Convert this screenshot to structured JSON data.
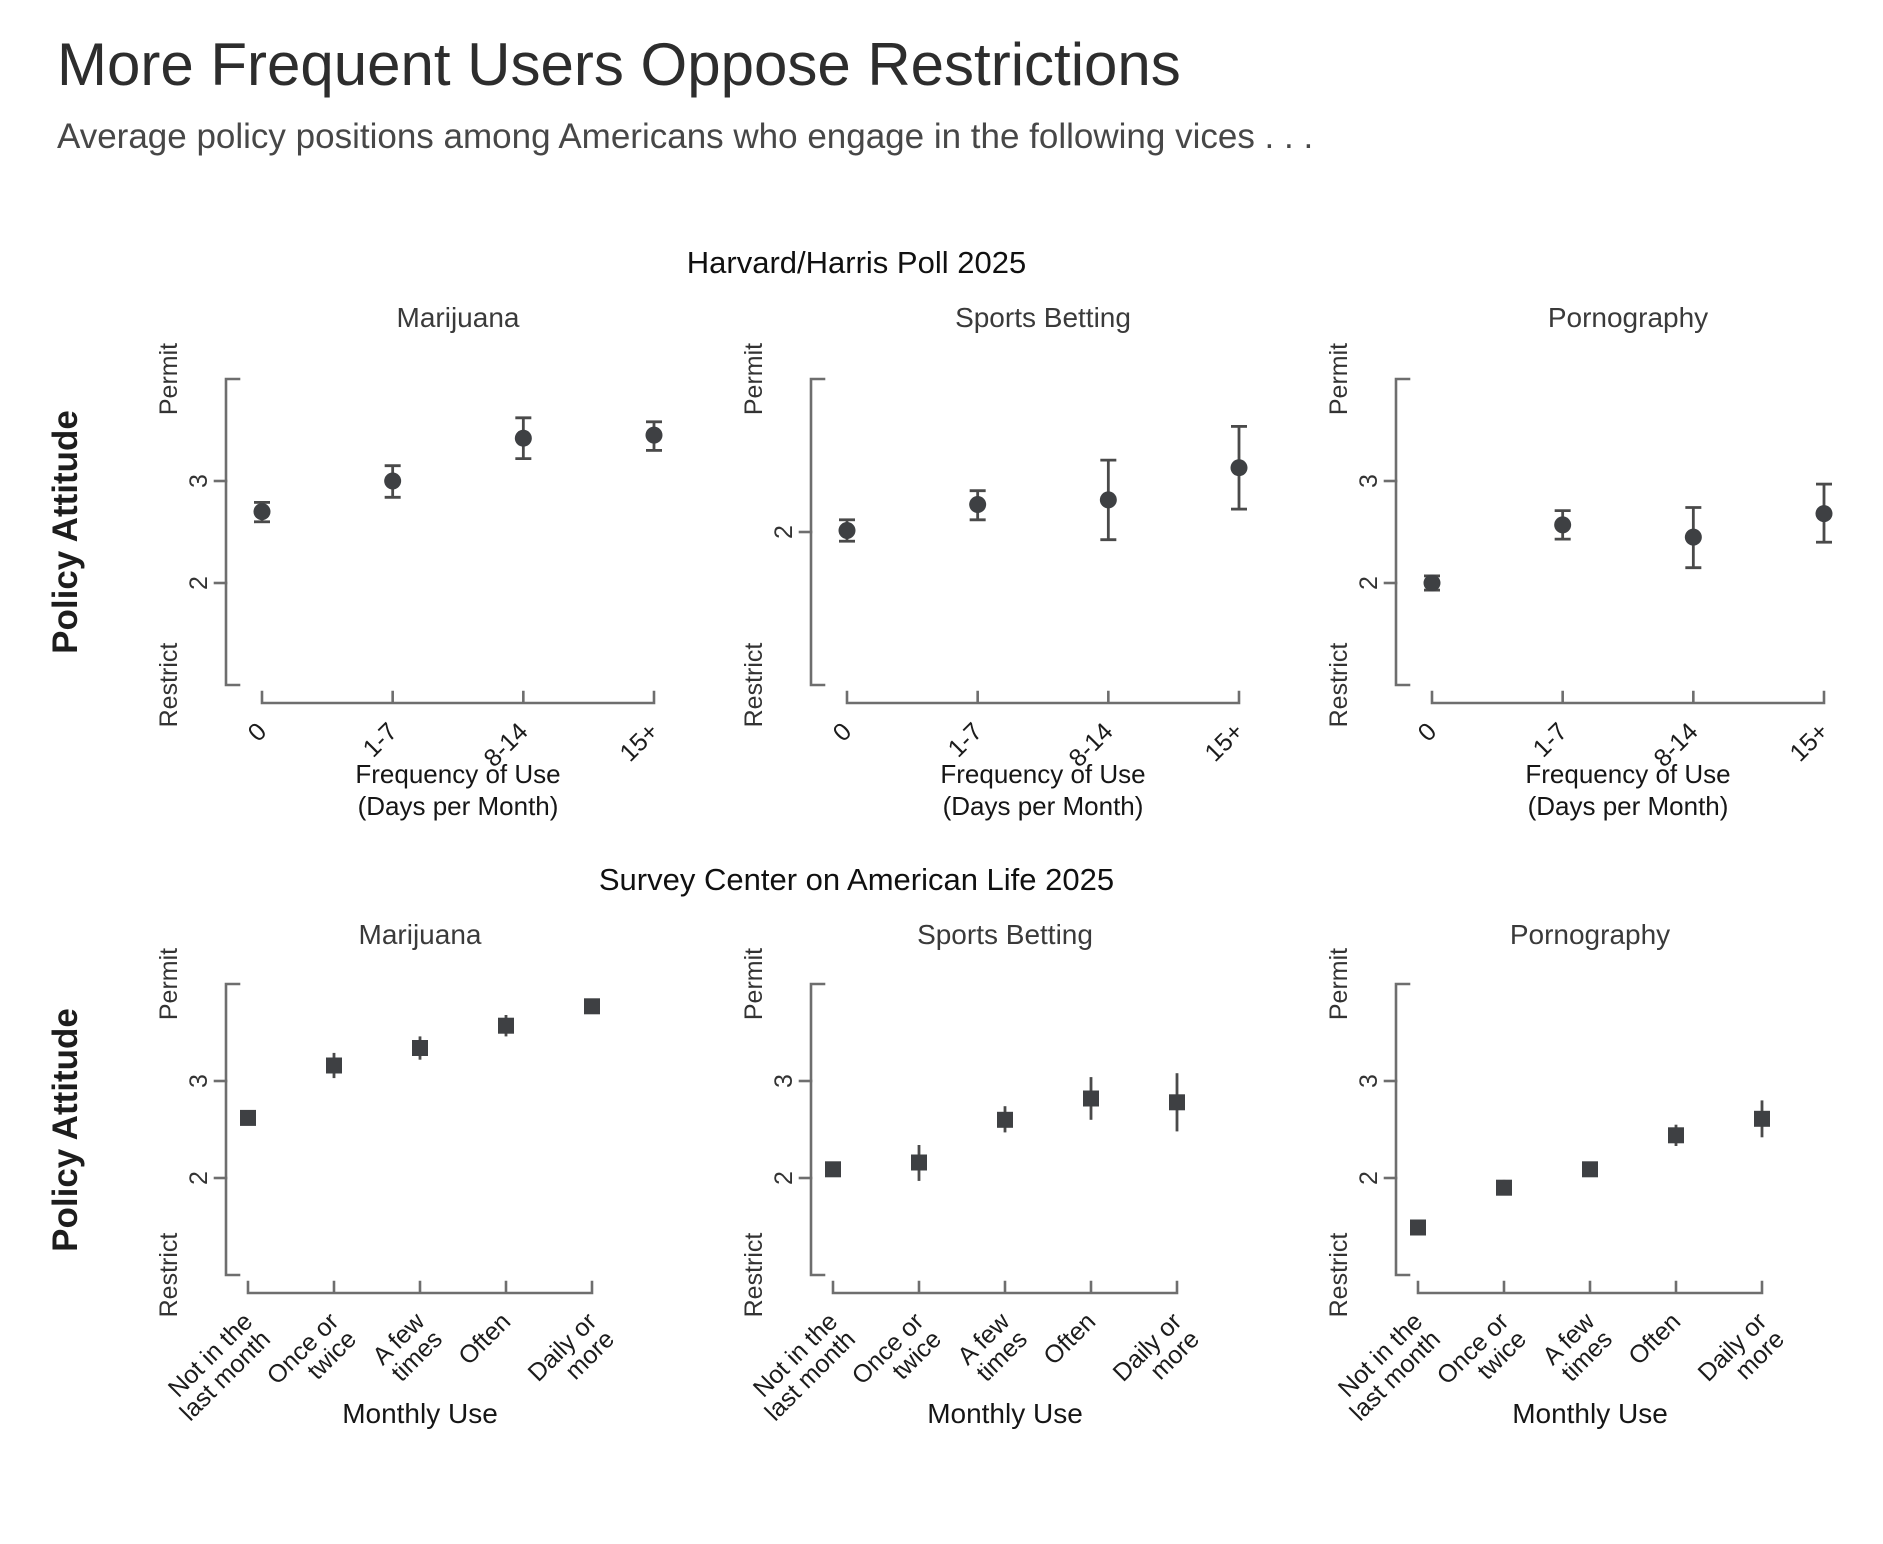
{
  "page": {
    "title": "More Frequent Users Oppose Restrictions",
    "subtitle": "Average policy positions among Americans who engage in the following vices . . ."
  },
  "chart_data": [
    {
      "type": "scatter",
      "section_title": "Harvard/Harris Poll 2025",
      "marker": "circle",
      "error_caps": true,
      "ylabel": "Policy Attitude",
      "xlabel_lines": [
        "Frequency of Use",
        "(Days per Month)"
      ],
      "categories": [
        [
          "0"
        ],
        [
          "1-7"
        ],
        [
          "8-14"
        ],
        [
          "15+"
        ]
      ],
      "layout": {
        "grid": false,
        "x_tick_rotation": -45,
        "y_tick_rotation": -90,
        "legend": "none"
      },
      "panels": [
        {
          "title": "Marijuana",
          "ylim": [
            1,
            4
          ],
          "yticks": [
            2,
            3
          ],
          "y_end_labels": [
            "Restrict",
            "Permit"
          ],
          "values": [
            2.7,
            3.0,
            3.42,
            3.45
          ],
          "ci_low": [
            2.6,
            2.84,
            3.22,
            3.3
          ],
          "ci_high": [
            2.79,
            3.15,
            3.62,
            3.58
          ]
        },
        {
          "title": "Sports Betting",
          "ylim": [
            1,
            3
          ],
          "yticks": [
            2
          ],
          "y_end_labels": [
            "Restrict",
            "Permit"
          ],
          "values": [
            2.01,
            2.18,
            2.21,
            2.42
          ],
          "ci_low": [
            1.94,
            2.08,
            1.95,
            2.15
          ],
          "ci_high": [
            2.08,
            2.27,
            2.47,
            2.69
          ]
        },
        {
          "title": "Pornography",
          "ylim": [
            1,
            4
          ],
          "yticks": [
            2,
            3
          ],
          "y_end_labels": [
            "Restrict",
            "Permit"
          ],
          "values": [
            2.0,
            2.57,
            2.45,
            2.68
          ],
          "ci_low": [
            1.93,
            2.43,
            2.15,
            2.4
          ],
          "ci_high": [
            2.07,
            2.71,
            2.74,
            2.97
          ]
        }
      ]
    },
    {
      "type": "scatter",
      "section_title": "Survey Center on American Life 2025",
      "marker": "square",
      "error_caps": false,
      "ylabel": "Policy Attitude",
      "xlabel_lines": [
        "Monthly Use"
      ],
      "categories": [
        [
          "Not in the",
          "last month"
        ],
        [
          "Once or",
          "twice"
        ],
        [
          "A few",
          "times"
        ],
        [
          "Often"
        ],
        [
          "Daily or",
          "more"
        ]
      ],
      "layout": {
        "grid": false,
        "x_tick_rotation": -45,
        "y_tick_rotation": -90,
        "legend": "none"
      },
      "panels": [
        {
          "title": "Marijuana",
          "ylim": [
            1,
            4
          ],
          "yticks": [
            2,
            3
          ],
          "y_end_labels": [
            "Restrict",
            "Permit"
          ],
          "values": [
            2.62,
            3.16,
            3.34,
            3.57,
            3.77
          ],
          "ci_low": [
            2.55,
            3.03,
            3.22,
            3.46,
            3.71
          ],
          "ci_high": [
            2.69,
            3.29,
            3.46,
            3.68,
            3.83
          ]
        },
        {
          "title": "Sports Betting",
          "ylim": [
            1,
            4
          ],
          "yticks": [
            2,
            3
          ],
          "y_end_labels": [
            "Restrict",
            "Permit"
          ],
          "values": [
            2.09,
            2.16,
            2.6,
            2.82,
            2.78
          ],
          "ci_low": [
            2.03,
            1.97,
            2.47,
            2.6,
            2.48
          ],
          "ci_high": [
            2.15,
            2.34,
            2.74,
            3.04,
            3.08
          ]
        },
        {
          "title": "Pornography",
          "ylim": [
            1,
            4
          ],
          "yticks": [
            2,
            3
          ],
          "y_end_labels": [
            "Restrict",
            "Permit"
          ],
          "values": [
            1.49,
            1.9,
            2.09,
            2.44,
            2.61
          ],
          "ci_low": [
            1.44,
            1.82,
            2.01,
            2.33,
            2.42
          ],
          "ci_high": [
            1.54,
            1.98,
            2.17,
            2.55,
            2.8
          ]
        }
      ]
    }
  ],
  "colors": {
    "ink": "#3e4043",
    "error_bar": "#4a4a4a",
    "axis": "#6e6e6e",
    "title": "#2d2d2d",
    "subtitle": "#474747",
    "panel_title": "#3a3a3a"
  }
}
